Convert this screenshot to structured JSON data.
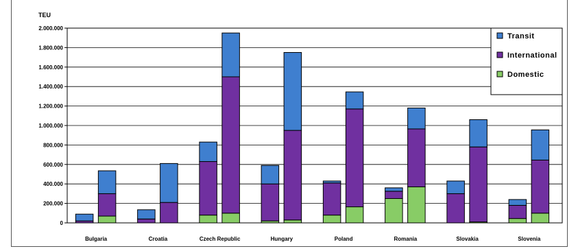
{
  "chart_data": {
    "type": "bar",
    "stacked": true,
    "grouped": true,
    "ylabel": "TEU",
    "ylim": [
      0,
      2000000
    ],
    "yticks": [
      "0",
      "200.000",
      "400.000",
      "600.000",
      "800.000",
      "1.000.000",
      "1.200.000",
      "1.400.000",
      "1.600.000",
      "1.800.000",
      "2.000.000"
    ],
    "ytick_values": [
      0,
      200000,
      400000,
      600000,
      800000,
      1000000,
      1200000,
      1400000,
      1600000,
      1800000,
      2000000
    ],
    "grid": true,
    "legend_position": "top-right",
    "categories": [
      "Bulgaria",
      "Croatia",
      "Czech Republic",
      "Hungary",
      "Poland",
      "Romania",
      "Slovakia",
      "Slovenia"
    ],
    "series": [
      {
        "name": "Domestic",
        "color": "#88cc66"
      },
      {
        "name": "International",
        "color": "#7030a0"
      },
      {
        "name": "Transit",
        "color": "#3f7fcf"
      }
    ],
    "legend_order": [
      "Transit",
      "International",
      "Domestic"
    ],
    "bars": [
      {
        "category": "Bulgaria",
        "group": 0,
        "values": [
          0,
          20000,
          70000
        ]
      },
      {
        "category": "Bulgaria",
        "group": 1,
        "values": [
          70000,
          230000,
          235000
        ]
      },
      {
        "category": "Croatia",
        "group": 0,
        "values": [
          0,
          40000,
          95000
        ]
      },
      {
        "category": "Croatia",
        "group": 1,
        "values": [
          0,
          210000,
          400000
        ]
      },
      {
        "category": "Czech Republic",
        "group": 0,
        "values": [
          80000,
          550000,
          200000
        ]
      },
      {
        "category": "Czech Republic",
        "group": 1,
        "values": [
          100000,
          1400000,
          450000
        ]
      },
      {
        "category": "Hungary",
        "group": 0,
        "values": [
          20000,
          380000,
          190000
        ]
      },
      {
        "category": "Hungary",
        "group": 1,
        "values": [
          30000,
          920000,
          800000
        ]
      },
      {
        "category": "Poland",
        "group": 0,
        "values": [
          80000,
          330000,
          20000
        ]
      },
      {
        "category": "Poland",
        "group": 1,
        "values": [
          165000,
          1005000,
          175000
        ]
      },
      {
        "category": "Romania",
        "group": 0,
        "values": [
          250000,
          75000,
          35000
        ]
      },
      {
        "category": "Romania",
        "group": 1,
        "values": [
          370000,
          595000,
          215000
        ]
      },
      {
        "category": "Slovakia",
        "group": 0,
        "values": [
          0,
          300000,
          130000
        ]
      },
      {
        "category": "Slovakia",
        "group": 1,
        "values": [
          10000,
          770000,
          280000
        ]
      },
      {
        "category": "Slovenia",
        "group": 0,
        "values": [
          45000,
          135000,
          60000
        ]
      },
      {
        "category": "Slovenia",
        "group": 1,
        "values": [
          100000,
          545000,
          310000
        ]
      }
    ]
  }
}
